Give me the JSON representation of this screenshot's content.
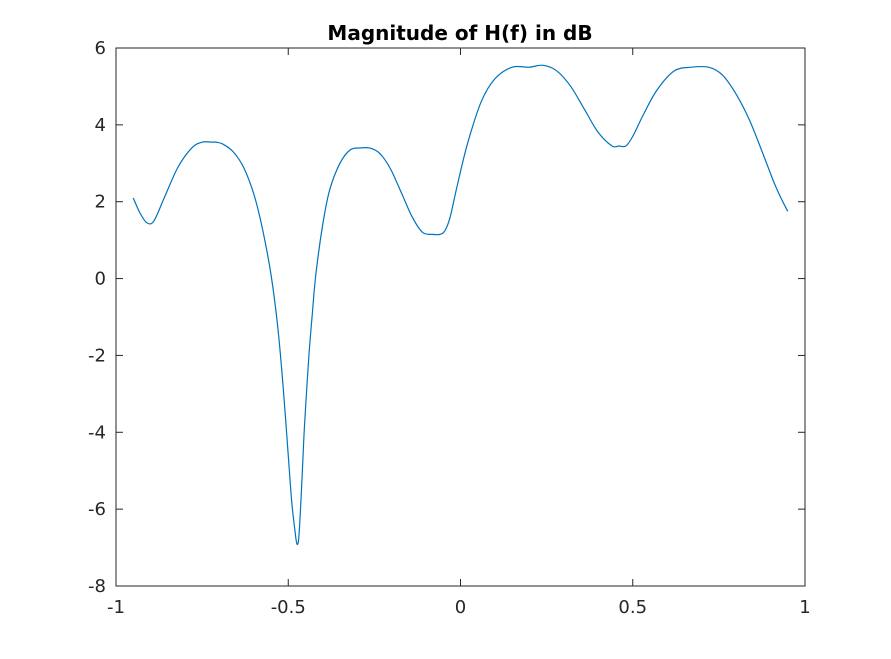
{
  "chart_data": {
    "type": "line",
    "title": "Magnitude of H(f) in dB",
    "xlabel": "",
    "ylabel": "",
    "xlim": [
      -1,
      1
    ],
    "ylim": [
      -8,
      6
    ],
    "grid": false,
    "xticks": [
      -1,
      -0.5,
      0,
      0.5,
      1
    ],
    "xtick_labels": [
      "-1",
      "-0.5",
      "0",
      "0.5",
      "1"
    ],
    "yticks": [
      -8,
      -6,
      -4,
      -2,
      0,
      2,
      4,
      6
    ],
    "ytick_labels": [
      "-8",
      "-6",
      "-4",
      "-2",
      "0",
      "2",
      "4",
      "6"
    ],
    "line_color": "#0072BD",
    "series": [
      {
        "x": [
          -0.95,
          -0.93,
          -0.91,
          -0.89,
          -0.86,
          -0.82,
          -0.78,
          -0.75,
          -0.72,
          -0.71,
          -0.69,
          -0.66,
          -0.63,
          -0.6,
          -0.575,
          -0.55,
          -0.53,
          -0.515,
          -0.5,
          -0.49,
          -0.48,
          -0.475,
          -0.47,
          -0.465,
          -0.46,
          -0.455,
          -0.45,
          -0.44,
          -0.43,
          -0.42,
          -0.4,
          -0.38,
          -0.35,
          -0.32,
          -0.29,
          -0.265,
          -0.24,
          -0.22,
          -0.2,
          -0.17,
          -0.14,
          -0.11,
          -0.08,
          -0.06,
          -0.045,
          -0.03,
          -0.01,
          0.02,
          0.06,
          0.1,
          0.15,
          0.2,
          0.24,
          0.28,
          0.32,
          0.36,
          0.4,
          0.44,
          0.46,
          0.48,
          0.5,
          0.53,
          0.57,
          0.62,
          0.67,
          0.72,
          0.76,
          0.8,
          0.84,
          0.88,
          0.91,
          0.93,
          0.95
        ],
        "y": [
          2.1,
          1.7,
          1.45,
          1.5,
          2.1,
          2.9,
          3.4,
          3.55,
          3.55,
          3.55,
          3.5,
          3.3,
          2.9,
          2.2,
          1.3,
          0.1,
          -1.3,
          -2.8,
          -4.6,
          -5.8,
          -6.6,
          -6.9,
          -6.8,
          -6.1,
          -5.2,
          -4.2,
          -3.4,
          -2.0,
          -0.9,
          0.1,
          1.4,
          2.3,
          3.0,
          3.35,
          3.4,
          3.4,
          3.3,
          3.1,
          2.8,
          2.2,
          1.6,
          1.2,
          1.15,
          1.15,
          1.25,
          1.6,
          2.4,
          3.5,
          4.6,
          5.2,
          5.5,
          5.5,
          5.55,
          5.4,
          5.0,
          4.4,
          3.8,
          3.45,
          3.45,
          3.45,
          3.7,
          4.25,
          4.9,
          5.4,
          5.5,
          5.5,
          5.3,
          4.8,
          4.1,
          3.2,
          2.5,
          2.1,
          1.75
        ]
      }
    ]
  }
}
